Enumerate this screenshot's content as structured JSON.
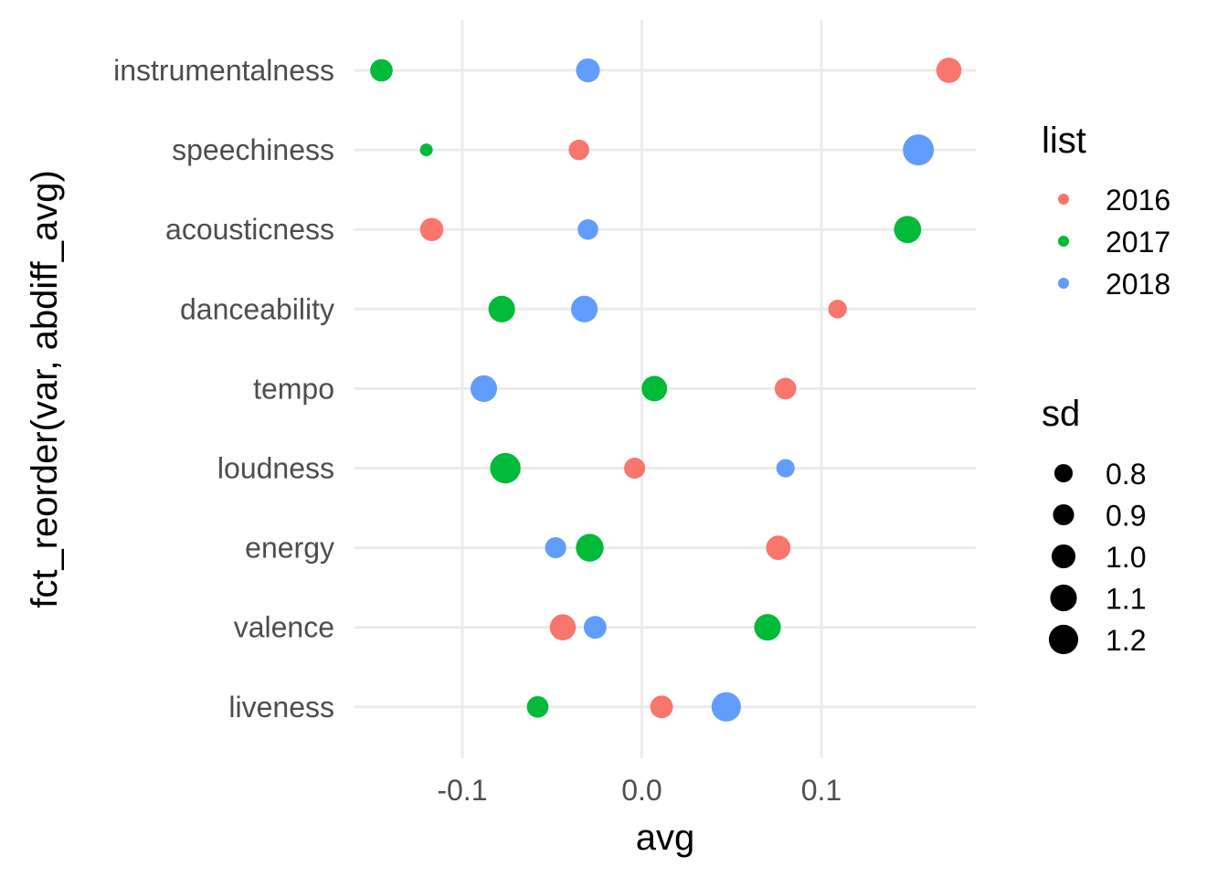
{
  "chart_data": {
    "type": "scatter",
    "xlabel": "avg",
    "ylabel": "fct_reorder(var, abdiff_avg)",
    "xlim": [
      -0.16,
      0.186
    ],
    "x_ticks": [
      -0.1,
      0.0,
      0.1
    ],
    "x_tick_labels": [
      "-0.1",
      "0.0",
      "0.1"
    ],
    "grid": true,
    "categories": [
      "instrumentalness",
      "speechiness",
      "acousticness",
      "danceability",
      "tempo",
      "loudness",
      "energy",
      "valence",
      "liveness"
    ],
    "series": [
      {
        "name": "2016",
        "color": "#F8766D",
        "points": [
          {
            "var": "instrumentalness",
            "avg": 0.171,
            "sd": 1.05
          },
          {
            "var": "speechiness",
            "avg": -0.035,
            "sd": 0.88
          },
          {
            "var": "acousticness",
            "avg": -0.117,
            "sd": 0.98
          },
          {
            "var": "danceability",
            "avg": 0.109,
            "sd": 0.81
          },
          {
            "var": "tempo",
            "avg": 0.08,
            "sd": 0.92
          },
          {
            "var": "loudness",
            "avg": -0.004,
            "sd": 0.9
          },
          {
            "var": "energy",
            "avg": 0.076,
            "sd": 1.02
          },
          {
            "var": "valence",
            "avg": -0.044,
            "sd": 1.08
          },
          {
            "var": "liveness",
            "avg": 0.011,
            "sd": 0.96
          }
        ]
      },
      {
        "name": "2017",
        "color": "#00BA38",
        "points": [
          {
            "var": "instrumentalness",
            "avg": -0.145,
            "sd": 0.95
          },
          {
            "var": "speechiness",
            "avg": -0.12,
            "sd": 0.6
          },
          {
            "var": "acousticness",
            "avg": 0.148,
            "sd": 1.12
          },
          {
            "var": "danceability",
            "avg": -0.078,
            "sd": 1.1
          },
          {
            "var": "tempo",
            "avg": 0.007,
            "sd": 1.06
          },
          {
            "var": "loudness",
            "avg": -0.076,
            "sd": 1.24
          },
          {
            "var": "energy",
            "avg": -0.029,
            "sd": 1.14
          },
          {
            "var": "valence",
            "avg": 0.07,
            "sd": 1.1
          },
          {
            "var": "liveness",
            "avg": -0.058,
            "sd": 0.92
          }
        ]
      },
      {
        "name": "2018",
        "color": "#619CFF",
        "points": [
          {
            "var": "instrumentalness",
            "avg": -0.03,
            "sd": 1.0
          },
          {
            "var": "speechiness",
            "avg": 0.154,
            "sd": 1.26
          },
          {
            "var": "acousticness",
            "avg": -0.03,
            "sd": 0.88
          },
          {
            "var": "danceability",
            "avg": -0.032,
            "sd": 1.1
          },
          {
            "var": "tempo",
            "avg": -0.088,
            "sd": 1.1
          },
          {
            "var": "loudness",
            "avg": 0.08,
            "sd": 0.8
          },
          {
            "var": "energy",
            "avg": -0.048,
            "sd": 0.9
          },
          {
            "var": "valence",
            "avg": -0.026,
            "sd": 0.96
          },
          {
            "var": "liveness",
            "avg": 0.047,
            "sd": 1.2
          }
        ]
      }
    ],
    "legends": {
      "color": {
        "title": "list",
        "items": [
          {
            "label": "2016",
            "color": "#F8766D"
          },
          {
            "label": "2017",
            "color": "#00BA38"
          },
          {
            "label": "2018",
            "color": "#619CFF"
          }
        ],
        "placement": "right"
      },
      "size": {
        "title": "sd",
        "items": [
          {
            "label": "0.8",
            "value": 0.8
          },
          {
            "label": "0.9",
            "value": 0.9
          },
          {
            "label": "1.0",
            "value": 1.0
          },
          {
            "label": "1.1",
            "value": 1.1
          },
          {
            "label": "1.2",
            "value": 1.2
          }
        ],
        "placement": "right"
      }
    }
  }
}
